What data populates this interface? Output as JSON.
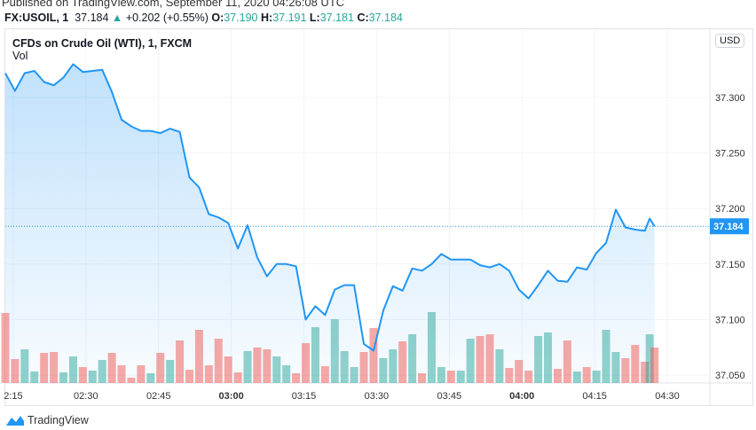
{
  "published": "Published on TradingView.com, September 11, 2020 04:26:08 UTC",
  "symbol_bar": {
    "symbol": "FX:USOIL, 1",
    "last": "37.184",
    "arrow_icon": "triangle-up-icon",
    "change": "+0.202 (+0.55%)",
    "o_label": "O:",
    "o": "37.190",
    "h_label": "H:",
    "h": "37.191",
    "l_label": "L:",
    "l": "37.181",
    "c_label": "C:",
    "c": "37.184"
  },
  "legend": {
    "title": "CFDs on Crude Oil (WTI), 1, FXCM",
    "vol": "Vol"
  },
  "currency": "USD",
  "footer": {
    "brand": "TradingView"
  },
  "colors": {
    "line": "#2196f3",
    "up": "#26a69a",
    "down": "#ef5350",
    "price_label": "#2196f3"
  },
  "chart_data": {
    "type": "area",
    "ylim": [
      37.042,
      37.345
    ],
    "yticks": [
      "37.300",
      "37.250",
      "37.200",
      "37.150",
      "37.100",
      "37.050"
    ],
    "xticks": [
      "2:15",
      "02:30",
      "02:45",
      "03:00",
      "03:15",
      "03:30",
      "03:45",
      "04:00",
      "04:15",
      "04:30"
    ],
    "last_price": "37.184",
    "grid": true,
    "x": [
      "02:13",
      "02:15",
      "02:17",
      "02:19",
      "02:21",
      "02:23",
      "02:25",
      "02:27",
      "02:29",
      "02:31",
      "02:33",
      "02:35",
      "02:37",
      "02:39",
      "02:41",
      "02:43",
      "02:45",
      "02:47",
      "02:49",
      "02:51",
      "02:53",
      "02:55",
      "02:57",
      "02:59",
      "03:01",
      "03:03",
      "03:05",
      "03:07",
      "03:09",
      "03:11",
      "03:13",
      "03:15",
      "03:17",
      "03:19",
      "03:21",
      "03:23",
      "03:25",
      "03:27",
      "03:29",
      "03:31",
      "03:33",
      "03:35",
      "03:37",
      "03:39",
      "03:41",
      "03:43",
      "03:45",
      "03:47",
      "03:49",
      "03:51",
      "03:53",
      "03:55",
      "03:57",
      "03:59",
      "04:01",
      "04:03",
      "04:05",
      "04:07",
      "04:09",
      "04:11",
      "04:13",
      "04:15",
      "04:17",
      "04:19",
      "04:21",
      "04:23",
      "04:25",
      "04:26",
      "04:27"
    ],
    "price": [
      37.322,
      37.306,
      37.322,
      37.324,
      37.314,
      37.311,
      37.318,
      37.33,
      37.323,
      37.324,
      37.325,
      37.305,
      37.28,
      37.274,
      37.27,
      37.27,
      37.268,
      37.272,
      37.269,
      37.228,
      37.219,
      37.195,
      37.192,
      37.187,
      37.164,
      37.185,
      37.156,
      37.139,
      37.15,
      37.15,
      37.148,
      37.1,
      37.112,
      37.104,
      37.127,
      37.131,
      37.131,
      37.078,
      37.072,
      37.108,
      37.13,
      37.126,
      37.146,
      37.144,
      37.15,
      37.159,
      37.154,
      37.154,
      37.154,
      37.149,
      37.147,
      37.15,
      37.144,
      37.127,
      37.119,
      37.131,
      37.144,
      37.135,
      37.134,
      37.147,
      37.145,
      37.16,
      37.169,
      37.199,
      37.183,
      37.181,
      37.18,
      37.191,
      37.184
    ],
    "volume": [
      79,
      27,
      38,
      13,
      34,
      35,
      12,
      30,
      18,
      14,
      26,
      34,
      20,
      6,
      20,
      11,
      34,
      26,
      48,
      15,
      60,
      20,
      50,
      30,
      12,
      36,
      40,
      38,
      30,
      20,
      11,
      45,
      63,
      19,
      72,
      36,
      18,
      35,
      62,
      28,
      38,
      47,
      55,
      11,
      80,
      18,
      14,
      14,
      50,
      53,
      55,
      38,
      17,
      26,
      14,
      53,
      57,
      16,
      48,
      13,
      18,
      14,
      60,
      35,
      28,
      43,
      24,
      55,
      40
    ]
  }
}
